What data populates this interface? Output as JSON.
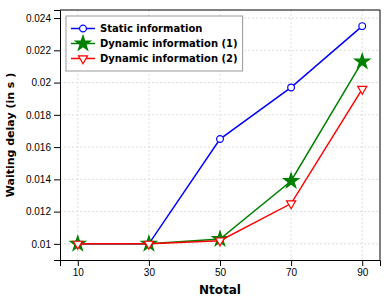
{
  "chart_data": {
    "type": "line",
    "x": [
      10,
      30,
      50,
      70,
      90
    ],
    "series": [
      {
        "name": "Static information",
        "color": "#0000ff",
        "marker": "circle",
        "values": [
          0.01,
          0.01,
          0.0165,
          0.0197,
          0.0235
        ]
      },
      {
        "name": "Dynamic information (1)",
        "color": "#008000",
        "marker": "star",
        "values": [
          0.01,
          0.01,
          0.0103,
          0.0139,
          0.0213
        ]
      },
      {
        "name": "Dynamic information (2)",
        "color": "#ff0000",
        "marker": "triangle-down",
        "values": [
          0.01,
          0.01,
          0.0102,
          0.0125,
          0.0196
        ]
      }
    ],
    "xlabel": "Ntotal",
    "ylabel": "Waiting delay (in s )",
    "xlim": [
      5,
      95
    ],
    "ylim": [
      0.009,
      0.0245
    ],
    "xticks": [
      10,
      30,
      50,
      70,
      90
    ],
    "yticks": [
      0.01,
      0.012,
      0.014,
      0.016,
      0.018,
      0.02,
      0.022,
      0.024
    ],
    "grid": true,
    "legend": "upper-left"
  }
}
